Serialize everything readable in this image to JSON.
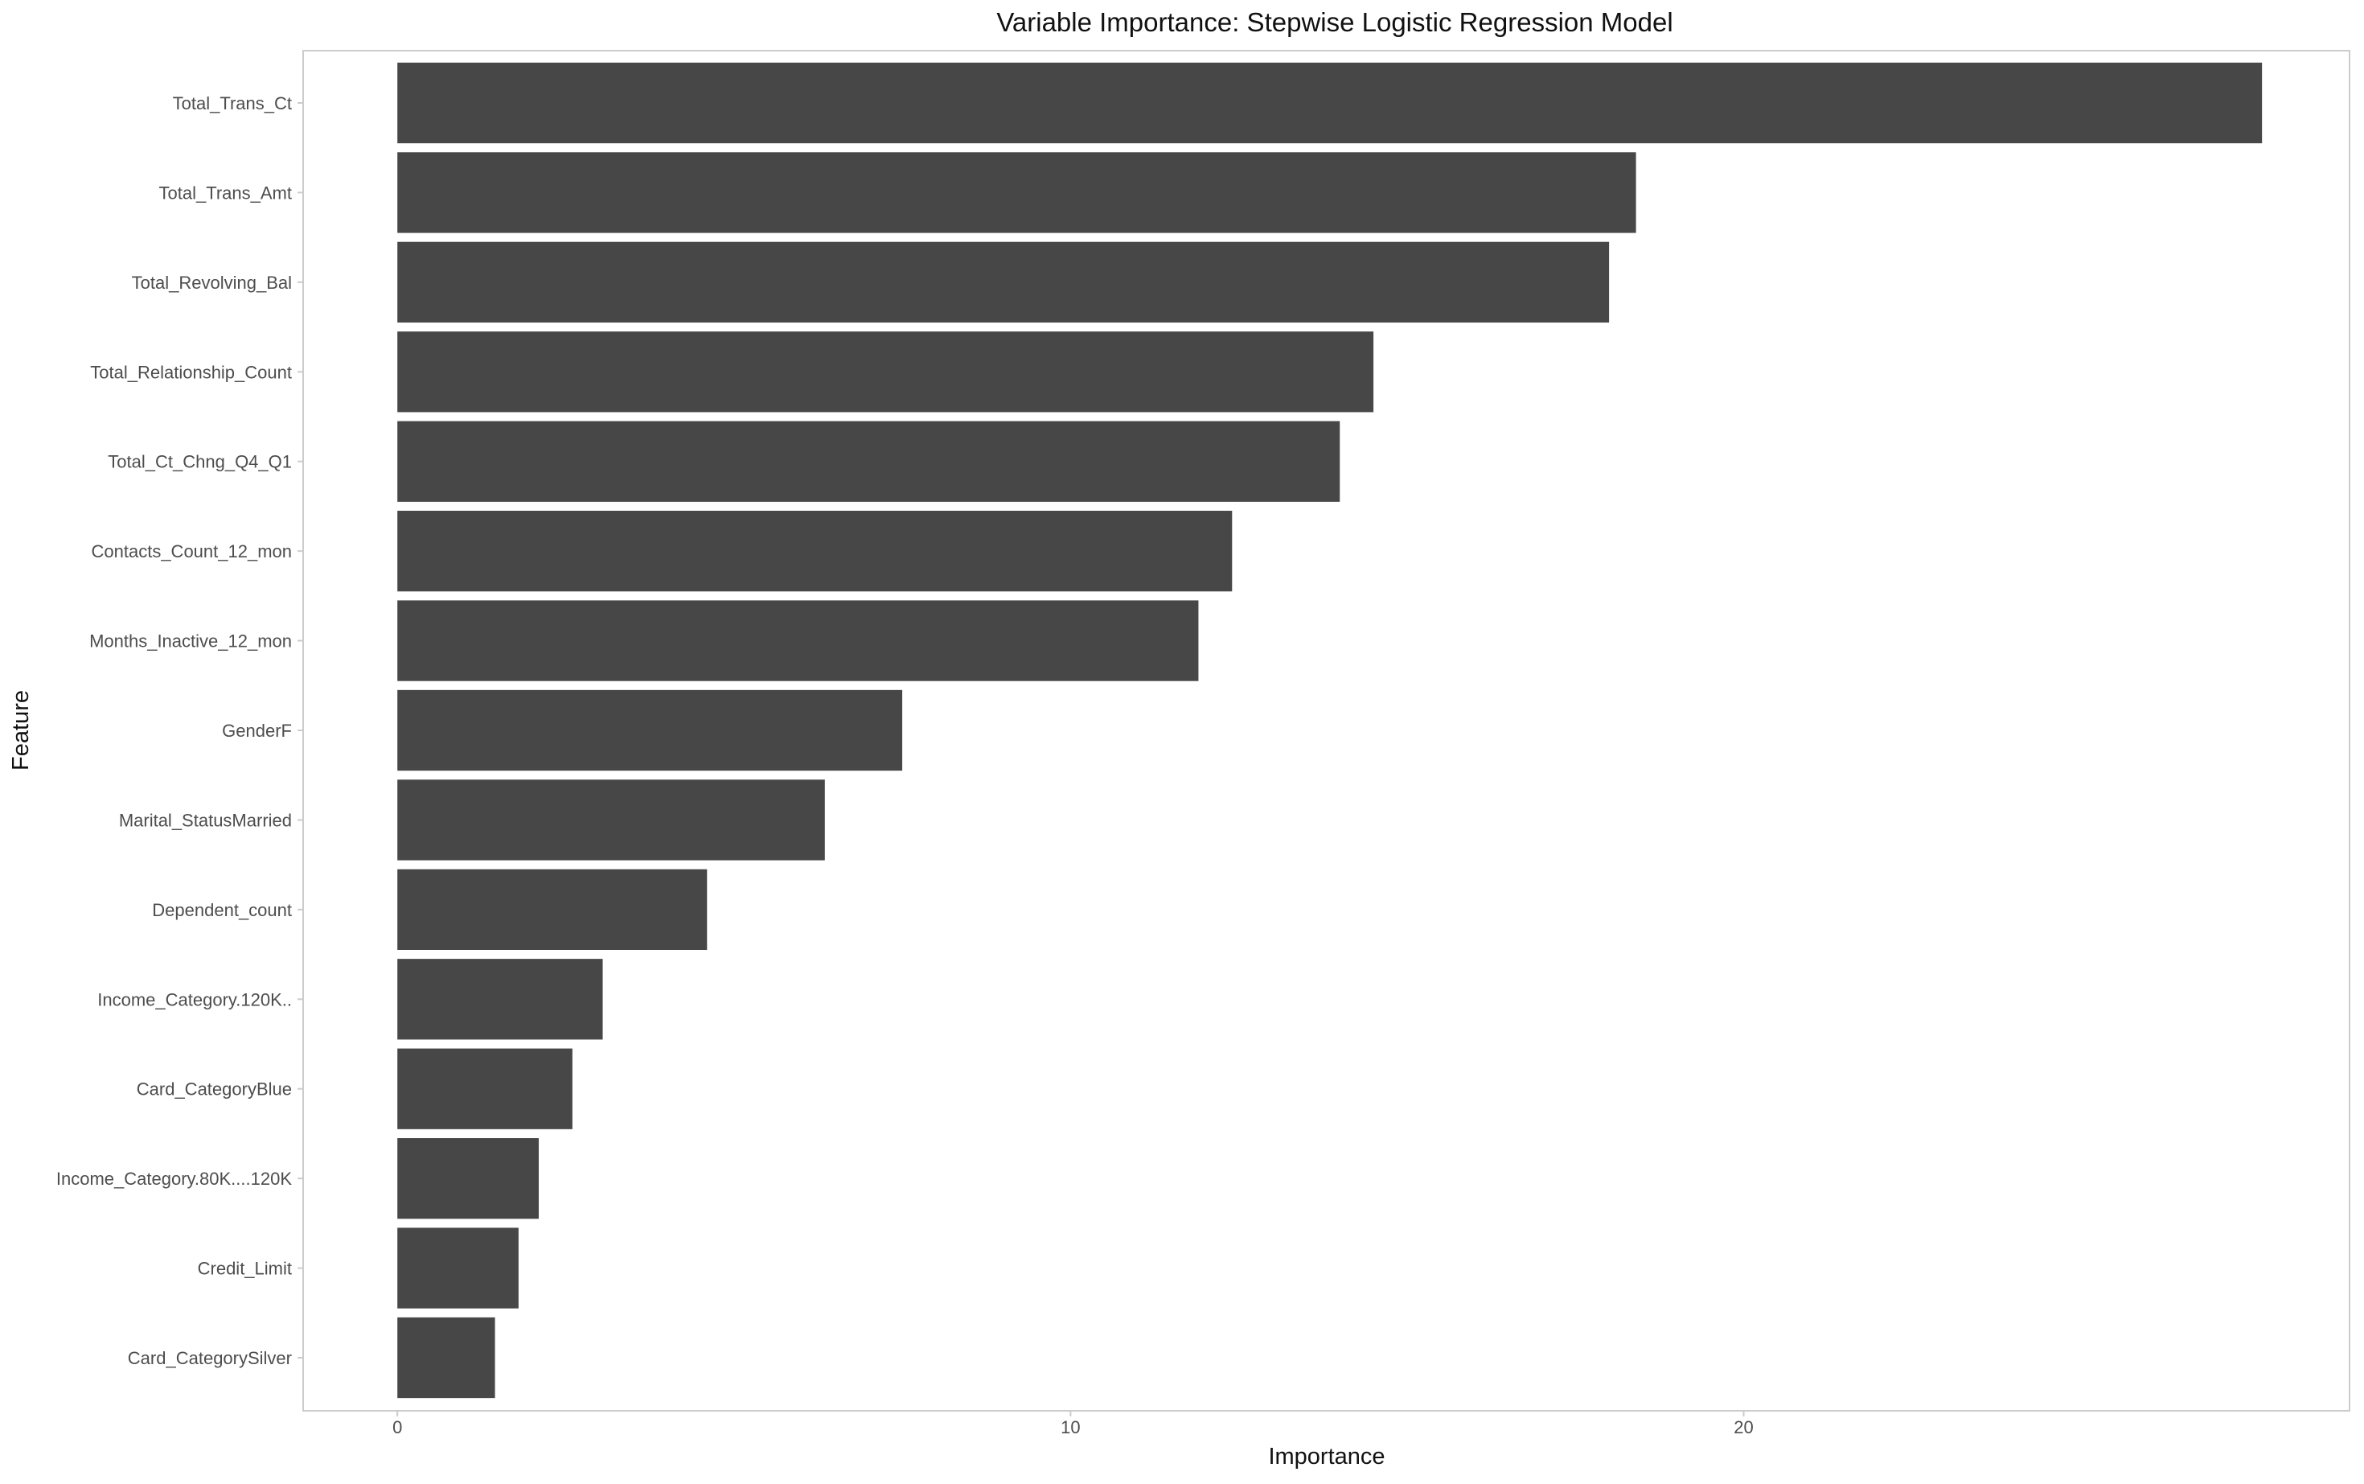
{
  "chart_data": {
    "type": "bar",
    "orientation": "horizontal",
    "title": "Variable Importance: Stepwise Logistic Regression Model",
    "xlabel": "Importance",
    "ylabel": "Feature",
    "xlim": [
      -1.4,
      29.0
    ],
    "x_ticks": [
      "0",
      "10",
      "20"
    ],
    "grid": false,
    "legend": "none",
    "bar_color": "#474747",
    "categories": [
      "Total_Trans_Ct",
      "Total_Trans_Amt",
      "Total_Revolving_Bal",
      "Total_Relationship_Count",
      "Total_Ct_Chng_Q4_Q1",
      "Contacts_Count_12_mon",
      "Months_Inactive_12_mon",
      "GenderF",
      "Marital_StatusMarried",
      "Dependent_count",
      "Income_Category.120K..",
      "Card_CategoryBlue",
      "Income_Category.80K....120K",
      "Credit_Limit",
      "Card_CategorySilver"
    ],
    "values": [
      27.7,
      18.4,
      18.0,
      14.5,
      14.0,
      12.4,
      11.9,
      7.5,
      6.35,
      4.6,
      3.05,
      2.6,
      2.1,
      1.8,
      1.45
    ]
  }
}
